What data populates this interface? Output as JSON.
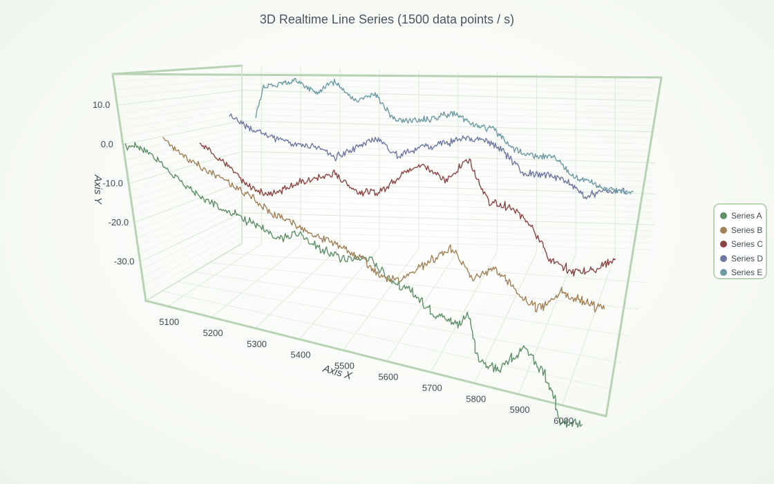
{
  "chart_data": {
    "type": "line",
    "title": "3D Realtime Line Series (1500 data points / s)",
    "xlabel": "Axis X",
    "ylabel": "Axis Y",
    "xlim": [
      5050,
      6100
    ],
    "ylim": [
      -40,
      18
    ],
    "x_ticks": [
      5100,
      5200,
      5300,
      5400,
      5500,
      5600,
      5700,
      5800,
      5900,
      6000
    ],
    "y_ticks": [
      "10.0",
      "0.0",
      "-10.0",
      "-20.0",
      "-30.0"
    ],
    "y_tick_values": [
      10,
      0,
      -10,
      -20,
      -30
    ],
    "legend_position": "right",
    "series": [
      {
        "name": "Series A",
        "color": "#5e8f67",
        "z": 0,
        "x": [
          5050,
          5070,
          5100,
          5150,
          5200,
          5250,
          5300,
          5350,
          5400,
          5450,
          5500,
          5550,
          5600,
          5650,
          5700,
          5750,
          5770,
          5800,
          5850,
          5900,
          5950,
          6000,
          6050
        ],
        "y": [
          -1,
          0,
          -2,
          -8,
          -12,
          -14,
          -16,
          -19,
          -17,
          -20,
          -21,
          -20,
          -24,
          -26,
          -29,
          -30,
          -28,
          -36,
          -37,
          -32,
          -36,
          -43,
          -43
        ]
      },
      {
        "name": "Series B",
        "color": "#a08058",
        "z": 1,
        "x": [
          5080,
          5100,
          5150,
          5200,
          5250,
          5300,
          5350,
          5400,
          5450,
          5500,
          5550,
          5600,
          5650,
          5700,
          5750,
          5800,
          5850,
          5900,
          5950,
          6000,
          6050
        ],
        "y": [
          1,
          -2,
          -6,
          -9,
          -12,
          -16,
          -18,
          -20,
          -22,
          -24,
          -28,
          -27,
          -23,
          -19,
          -25,
          -22,
          -26,
          -29,
          -25,
          -26,
          -27
        ]
      },
      {
        "name": "Series C",
        "color": "#8b4444",
        "z": 2,
        "x": [
          5100,
          5150,
          5200,
          5250,
          5300,
          5350,
          5400,
          5450,
          5500,
          5550,
          5600,
          5650,
          5700,
          5750,
          5800,
          5850,
          5900,
          5950,
          6000,
          6050
        ],
        "y": [
          -2,
          -7,
          -13,
          -15,
          -12,
          -10,
          -8,
          -12,
          -12,
          -7,
          -4,
          -8,
          -2,
          -12,
          -13,
          -16,
          -24,
          -26,
          -25,
          -22
        ]
      },
      {
        "name": "Series D",
        "color": "#6e78a2",
        "z": 3,
        "x": [
          5100,
          5150,
          5200,
          5250,
          5300,
          5350,
          5400,
          5450,
          5500,
          5550,
          5600,
          5650,
          5700,
          5750,
          5800,
          5850,
          5900,
          5950,
          6000,
          6050
        ],
        "y": [
          4,
          0,
          -2,
          -4,
          -4,
          -7,
          -4,
          -1,
          -6,
          -3,
          -2,
          0,
          0,
          -3,
          -9,
          -9,
          -10,
          -14,
          -12,
          -12
        ]
      },
      {
        "name": "Series E",
        "color": "#6d9aa3",
        "z": 4,
        "x": [
          5100,
          5120,
          5150,
          5200,
          5250,
          5300,
          5350,
          5400,
          5450,
          5500,
          5550,
          5600,
          5650,
          5700,
          5750,
          5800,
          5850,
          5900,
          5950,
          6000,
          6050
        ],
        "y": [
          2,
          12,
          12,
          14,
          10,
          14,
          8,
          10,
          2,
          2,
          3,
          5,
          1,
          0,
          -6,
          -8,
          -8,
          -14,
          -16,
          -18,
          -18
        ]
      }
    ]
  }
}
